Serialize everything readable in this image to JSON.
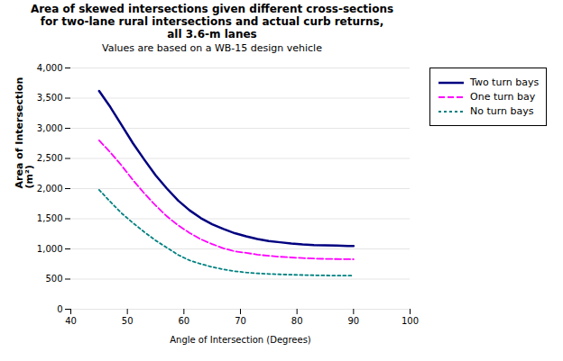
{
  "chart_data": {
    "type": "line",
    "title": "Area of skewed intersections given different cross-sections\nfor two-lane rural intersections and actual curb returns,\nall 3.6-m lanes",
    "subtitle": "Values are based on a WB-15 design vehicle",
    "x_label": "Angle of Intersection (Degrees)",
    "y_label": "Area of Intersection\n(m²)",
    "x": [
      45,
      47,
      49,
      51,
      53,
      55,
      57,
      59,
      61,
      63,
      65,
      67,
      69,
      71,
      73,
      75,
      77,
      79,
      81,
      83,
      85,
      87,
      89,
      90
    ],
    "series": [
      {
        "name": "Two turn bays",
        "color": "#000080",
        "line_style": "solid",
        "values": [
          3620,
          3350,
          3050,
          2750,
          2480,
          2220,
          2000,
          1800,
          1640,
          1510,
          1410,
          1330,
          1260,
          1210,
          1165,
          1130,
          1110,
          1090,
          1075,
          1065,
          1060,
          1055,
          1050,
          1050
        ]
      },
      {
        "name": "One turn bay",
        "color": "#ff00ff",
        "line_style": "dashed",
        "values": [
          2800,
          2600,
          2380,
          2140,
          1920,
          1720,
          1540,
          1390,
          1265,
          1160,
          1080,
          1010,
          960,
          935,
          905,
          885,
          870,
          858,
          848,
          840,
          835,
          832,
          830,
          828
        ]
      },
      {
        "name": "No turn bays",
        "color": "#008080",
        "line_style": "dotted",
        "values": [
          1980,
          1780,
          1590,
          1430,
          1280,
          1140,
          1020,
          900,
          810,
          750,
          700,
          660,
          630,
          610,
          595,
          585,
          578,
          572,
          567,
          563,
          560,
          558,
          557,
          556
        ]
      }
    ],
    "xlim": [
      40,
      100
    ],
    "ylim": [
      0,
      4000
    ],
    "xticks": [
      40,
      50,
      60,
      70,
      80,
      90,
      100
    ],
    "yticks": [
      0,
      500,
      1000,
      1500,
      2000,
      2500,
      3000,
      3500,
      4000
    ],
    "grid": "y",
    "legend": "right"
  }
}
